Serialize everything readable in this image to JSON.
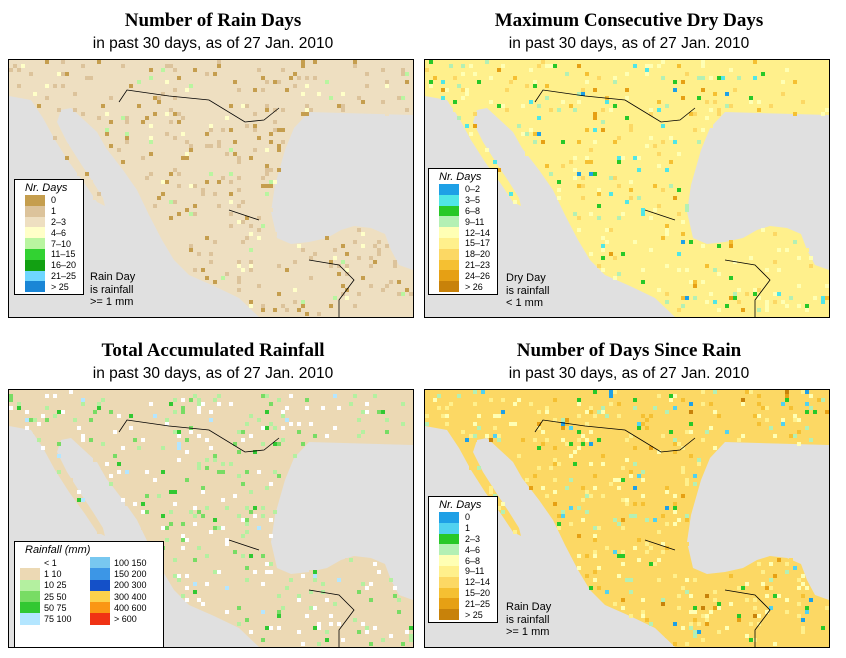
{
  "panels": [
    {
      "title": "Number of Rain Days",
      "subtitle": "in past 30 days, as of  27 Jan. 2010",
      "legend_title": "Nr. Days",
      "legend": [
        {
          "label": "0",
          "color": "#c59e4e"
        },
        {
          "label": "1",
          "color": "#dcc39b"
        },
        {
          "label": "2–3",
          "color": "#eedfc1"
        },
        {
          "label": "4–6",
          "color": "#ffffc8"
        },
        {
          "label": "7–10",
          "color": "#b9f5a0"
        },
        {
          "label": "11–15",
          "color": "#32d232"
        },
        {
          "label": "16–20",
          "color": "#12a012"
        },
        {
          "label": "21–25",
          "color": "#6fd6ff"
        },
        {
          "label": "> 25",
          "color": "#1a86d6"
        }
      ],
      "note": [
        "Rain Day",
        "is rainfall",
        ">= 1 mm"
      ]
    },
    {
      "title": "Maximum Consecutive Dry Days",
      "subtitle": "in past 30 days, as of  27 Jan. 2010",
      "legend_title": "Nr. Days",
      "legend": [
        {
          "label": "0–2",
          "color": "#1ea0e6"
        },
        {
          "label": "3–5",
          "color": "#50e6e6"
        },
        {
          "label": "6–8",
          "color": "#28c828"
        },
        {
          "label": "9–11",
          "color": "#b4f0b4"
        },
        {
          "label": "12–14",
          "color": "#ffffb4"
        },
        {
          "label": "15–17",
          "color": "#fff08c"
        },
        {
          "label": "18–20",
          "color": "#fcd864"
        },
        {
          "label": "21–23",
          "color": "#f5c032"
        },
        {
          "label": "24–26",
          "color": "#e6a014"
        },
        {
          "label": "> 26",
          "color": "#c8820a"
        }
      ],
      "note": [
        "Dry Day",
        "is rainfall",
        "< 1 mm"
      ]
    },
    {
      "title": "Total Accumulated Rainfall",
      "subtitle": "in past 30 days, as of  27 Jan. 2010",
      "legend_title": "Rainfall (mm)",
      "legend_left": [
        {
          "label": "<  1",
          "color": "#ffffff"
        },
        {
          "label": "1    10",
          "color": "#ecd9b4"
        },
        {
          "label": "10   25",
          "color": "#b4f0a0"
        },
        {
          "label": "25   50",
          "color": "#78dc64"
        },
        {
          "label": "50   75",
          "color": "#32c832"
        },
        {
          "label": "75  100",
          "color": "#b4e6ff"
        }
      ],
      "legend_right": [
        {
          "label": "100  150",
          "color": "#78c8f0"
        },
        {
          "label": "150  200",
          "color": "#3c96e6"
        },
        {
          "label": "200  300",
          "color": "#1450c8"
        },
        {
          "label": "300  400",
          "color": "#fcd24c"
        },
        {
          "label": "400  600",
          "color": "#fa9614"
        },
        {
          "label": "> 600",
          "color": "#f03214"
        }
      ]
    },
    {
      "title": "Number of Days Since Rain",
      "subtitle": "in past 30 days, as of  27 Jan. 2010",
      "legend_title": "Nr. Days",
      "legend": [
        {
          "label": "0",
          "color": "#1ea0e6"
        },
        {
          "label": "1",
          "color": "#50d2f0"
        },
        {
          "label": "2–3",
          "color": "#28c828"
        },
        {
          "label": "4–6",
          "color": "#b4f0b4"
        },
        {
          "label": "6–8",
          "color": "#ffffb4"
        },
        {
          "label": "9–11",
          "color": "#fff08c"
        },
        {
          "label": "12–14",
          "color": "#fcd864"
        },
        {
          "label": "15–20",
          "color": "#f5c032"
        },
        {
          "label": "21–25",
          "color": "#e6a014"
        },
        {
          "label": "> 25",
          "color": "#c8820a"
        }
      ],
      "note": [
        "Rain Day",
        "is rainfall",
        ">= 1 mm"
      ]
    }
  ]
}
